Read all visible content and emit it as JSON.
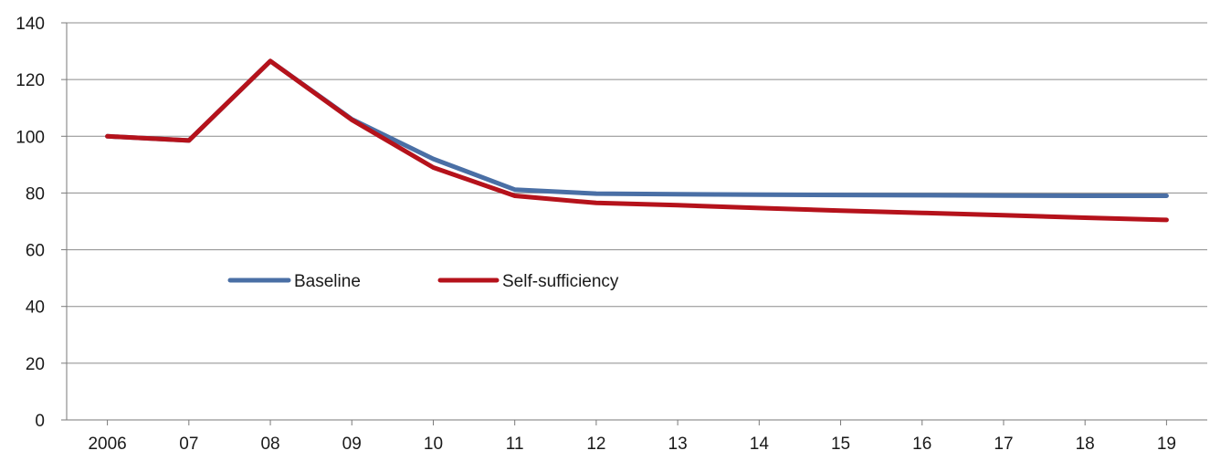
{
  "chart_data": {
    "type": "line",
    "categories": [
      "2006",
      "07",
      "08",
      "09",
      "10",
      "11",
      "12",
      "13",
      "14",
      "15",
      "16",
      "17",
      "18",
      "19"
    ],
    "series": [
      {
        "name": "Baseline",
        "color": "#4a6fa5",
        "values": [
          100,
          98.5,
          126.5,
          106,
          92,
          81.2,
          79.8,
          79.6,
          79.4,
          79.3,
          79.2,
          79.1,
          79.0,
          79.0
        ]
      },
      {
        "name": "Self-sufficiency",
        "color": "#b5121b",
        "values": [
          100,
          98.5,
          126.5,
          105.8,
          89,
          79,
          76.5,
          75.7,
          74.7,
          73.8,
          73.0,
          72.2,
          71.3,
          70.5
        ]
      }
    ],
    "yticks": [
      0,
      20,
      40,
      60,
      80,
      100,
      120,
      140
    ],
    "ylim": [
      0,
      140
    ],
    "grid": true,
    "legend_position": "inside-middle-left"
  }
}
